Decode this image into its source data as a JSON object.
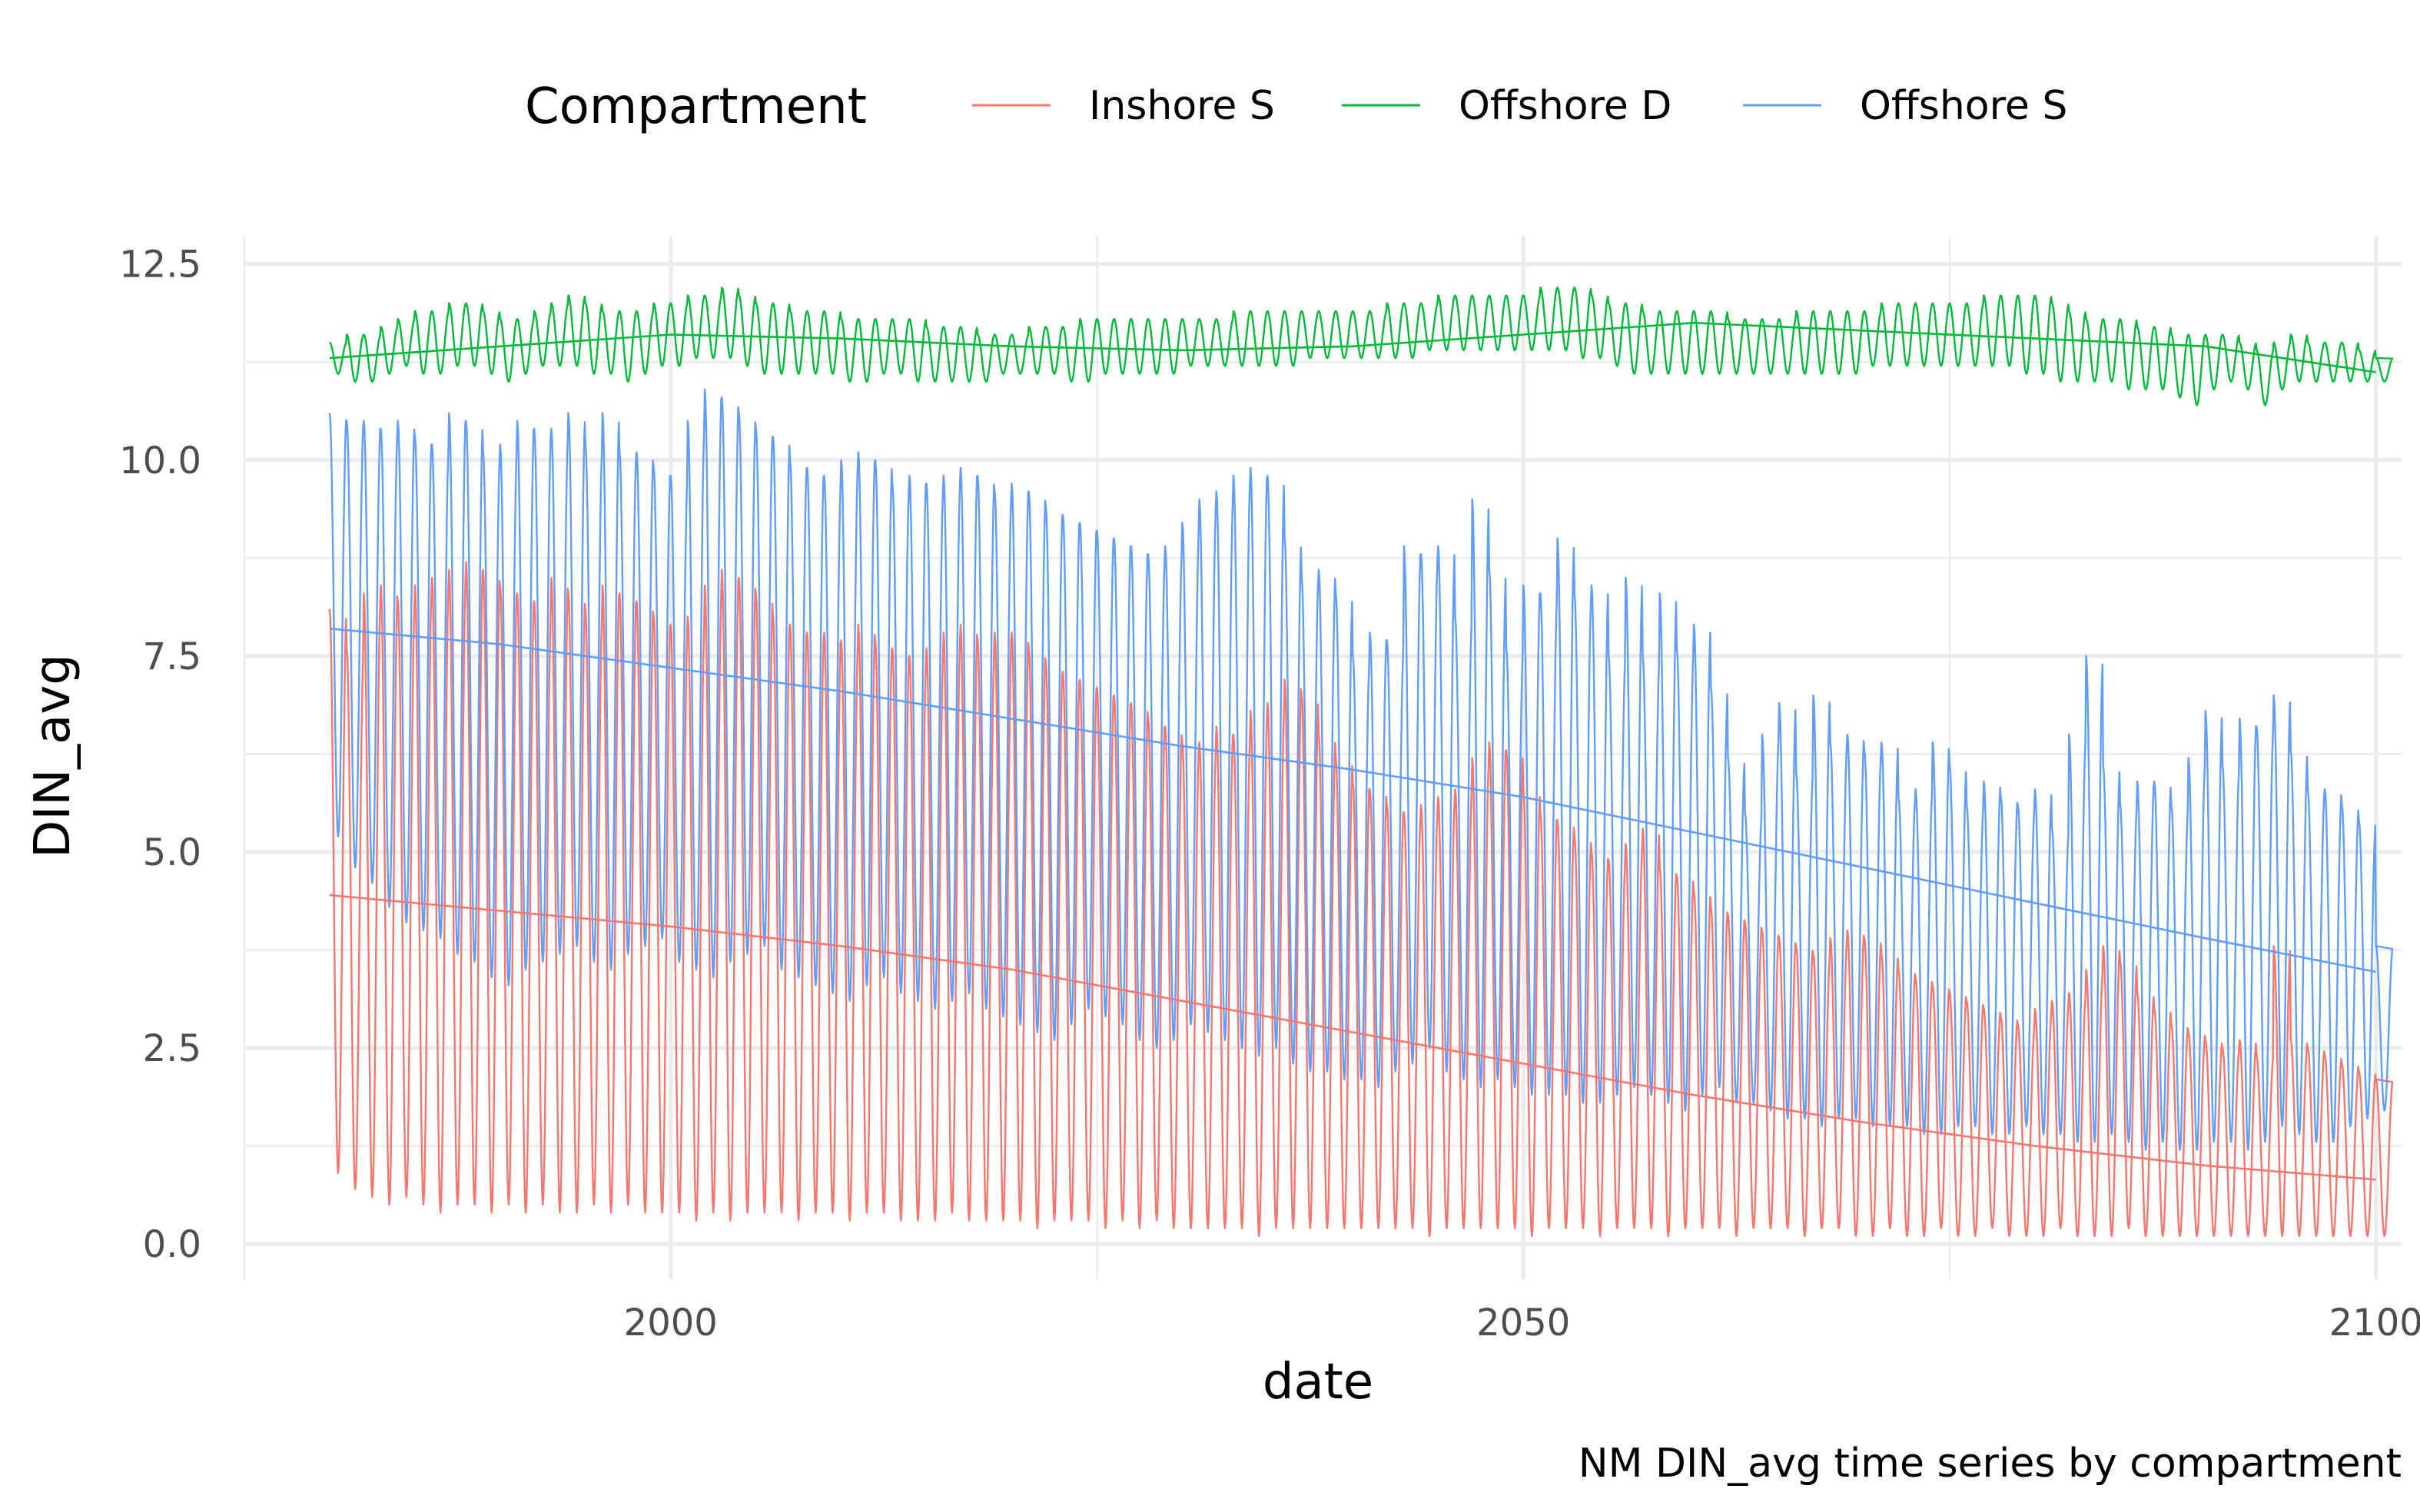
{
  "chart_data": {
    "type": "line",
    "title": "",
    "caption": "NM DIN_avg time series by compartment",
    "xlabel": "date",
    "ylabel": "DIN_avg",
    "x_range": [
      1975,
      2101.5
    ],
    "ylim": [
      -0.45,
      12.85
    ],
    "x_ticks": [
      2000,
      2050,
      2100
    ],
    "x_tick_labels": [
      "2000",
      "2050",
      "2100"
    ],
    "x_minor_ticks": [
      1975,
      2025,
      2075
    ],
    "y_ticks": [
      0,
      2.5,
      5,
      7.5,
      10,
      12.5
    ],
    "y_tick_labels": [
      "0.0",
      "2.5",
      "5.0",
      "7.5",
      "10.0",
      "12.5"
    ],
    "grid": true,
    "legend": {
      "title": "Compartment",
      "position": "top"
    },
    "series": [
      {
        "name": "Inshore S",
        "color": "#F8766D",
        "start_year": 1980,
        "end_year": 2100,
        "annual_max": [
          8.1,
          7.6,
          8.3,
          8.4,
          8.2,
          8.4,
          8.5,
          8.6,
          8.7,
          8.6,
          8.4,
          8.3,
          8.2,
          8.5,
          8.3,
          8.1,
          8.4,
          8.3,
          8.2,
          8.0,
          7.9,
          8.0,
          8.4,
          8.6,
          8.5,
          8.3,
          8.0,
          7.9,
          7.8,
          7.8,
          7.7,
          7.9,
          7.7,
          7.6,
          7.5,
          7.6,
          7.8,
          7.9,
          7.7,
          7.8,
          7.8,
          7.6,
          7.4,
          7.3,
          7.2,
          7.1,
          7.0,
          6.9,
          6.7,
          6.6,
          6.4,
          6.4,
          6.6,
          6.5,
          6.8,
          6.9,
          7.2,
          7.0,
          6.5,
          6.2,
          5.9,
          5.8,
          5.6,
          5.5,
          5.6,
          5.7,
          5.8,
          6.2,
          6.4,
          6.3,
          5.8,
          5.5,
          5.4,
          5.2,
          5.0,
          4.9,
          5.1,
          5.3,
          4.8,
          4.7,
          4.5,
          4.3,
          4.2,
          4.1,
          4.0,
          3.9,
          3.8,
          3.7,
          3.9,
          4.0,
          3.9,
          3.7,
          3.5,
          3.4,
          3.3,
          3.2,
          3.1,
          3.0,
          2.9,
          2.8,
          3.0,
          3.1,
          3.2,
          3.5,
          3.8,
          3.6,
          3.2,
          3.0,
          2.8,
          2.7,
          2.6,
          2.5,
          2.6,
          2.4,
          3.8,
          2.6,
          2.5,
          2.4,
          2.3,
          2.2,
          2.1
        ],
        "annual_min": [
          0.9,
          0.7,
          0.6,
          0.5,
          0.6,
          0.5,
          0.4,
          0.5,
          0.5,
          0.4,
          0.5,
          0.4,
          0.5,
          0.4,
          0.4,
          0.5,
          0.4,
          0.5,
          0.4,
          0.4,
          0.4,
          0.3,
          0.4,
          0.3,
          0.4,
          0.4,
          0.4,
          0.3,
          0.4,
          0.4,
          0.3,
          0.4,
          0.4,
          0.3,
          0.3,
          0.3,
          0.4,
          0.3,
          0.3,
          0.3,
          0.3,
          0.2,
          0.3,
          0.3,
          0.3,
          0.2,
          0.3,
          0.2,
          0.3,
          0.2,
          0.2,
          0.2,
          0.2,
          0.2,
          0.1,
          0.2,
          0.2,
          0.2,
          0.2,
          0.2,
          0.2,
          0.2,
          0.2,
          0.2,
          0.1,
          0.2,
          0.2,
          0.2,
          0.2,
          0.2,
          0.1,
          0.2,
          0.2,
          0.2,
          0.1,
          0.2,
          0.2,
          0.2,
          0.1,
          0.2,
          0.2,
          0.2,
          0.1,
          0.2,
          0.2,
          0.2,
          0.1,
          0.2,
          0.2,
          0.1,
          0.1,
          0.2,
          0.1,
          0.1,
          0.2,
          0.1,
          0.1,
          0.2,
          0.1,
          0.1,
          0.1,
          0.2,
          0.1,
          0.1,
          0.1,
          0.2,
          0.1,
          0.1,
          0.1,
          0.1,
          0.1,
          0.1,
          0.1,
          0.1,
          0.1,
          0.1,
          0.1,
          0.1,
          0.1,
          0.1,
          0.1
        ],
        "trend": {
          "x": [
            1980,
            1990,
            2000,
            2010,
            2020,
            2030,
            2040,
            2050,
            2060,
            2070,
            2080,
            2090,
            2100
          ],
          "y": [
            4.45,
            4.25,
            4.05,
            3.8,
            3.5,
            3.1,
            2.7,
            2.3,
            1.9,
            1.55,
            1.25,
            1.0,
            0.82
          ]
        }
      },
      {
        "name": "Offshore D",
        "color": "#00BA38",
        "start_year": 1980,
        "end_year": 2100,
        "annual_max": [
          11.5,
          11.6,
          11.6,
          11.7,
          11.8,
          11.9,
          11.9,
          12.0,
          12.0,
          11.9,
          11.8,
          11.8,
          11.9,
          12.0,
          12.1,
          12.0,
          11.9,
          11.9,
          11.9,
          12.0,
          12.0,
          12.1,
          12.1,
          12.2,
          12.1,
          12.0,
          12.0,
          11.9,
          11.9,
          11.9,
          11.8,
          11.8,
          11.8,
          11.8,
          11.8,
          11.7,
          11.7,
          11.7,
          11.6,
          11.6,
          11.6,
          11.7,
          11.7,
          11.7,
          11.8,
          11.8,
          11.8,
          11.8,
          11.8,
          11.8,
          11.8,
          11.8,
          11.8,
          11.9,
          11.9,
          11.9,
          11.9,
          11.9,
          11.9,
          11.9,
          11.9,
          11.9,
          12.0,
          12.0,
          12.0,
          12.1,
          12.1,
          12.1,
          12.1,
          12.1,
          12.1,
          12.2,
          12.2,
          12.2,
          12.1,
          12.0,
          12.0,
          11.9,
          11.9,
          11.9,
          11.9,
          11.9,
          11.8,
          11.8,
          11.8,
          11.8,
          11.9,
          11.9,
          11.9,
          11.9,
          11.9,
          12.0,
          12.0,
          12.0,
          12.0,
          12.0,
          12.0,
          12.1,
          12.1,
          12.1,
          12.1,
          12.0,
          11.9,
          11.8,
          11.8,
          11.8,
          11.7,
          11.7,
          11.6,
          11.6,
          11.6,
          11.6,
          11.5,
          11.4,
          11.5,
          11.6,
          11.5,
          11.5,
          11.5,
          11.4,
          11.3
        ],
        "annual_min": [
          11.1,
          11.0,
          11.0,
          11.1,
          11.2,
          11.1,
          11.1,
          11.2,
          11.2,
          11.1,
          11.0,
          11.1,
          11.2,
          11.2,
          11.2,
          11.1,
          11.1,
          11.0,
          11.1,
          11.2,
          11.2,
          11.3,
          11.3,
          11.3,
          11.2,
          11.1,
          11.1,
          11.1,
          11.1,
          11.1,
          11.0,
          11.0,
          11.1,
          11.1,
          11.0,
          11.0,
          11.0,
          11.0,
          11.0,
          11.1,
          11.1,
          11.1,
          11.1,
          11.0,
          11.0,
          11.1,
          11.1,
          11.1,
          11.1,
          11.1,
          11.2,
          11.2,
          11.2,
          11.2,
          11.2,
          11.2,
          11.2,
          11.3,
          11.3,
          11.3,
          11.3,
          11.3,
          11.3,
          11.3,
          11.4,
          11.4,
          11.4,
          11.4,
          11.4,
          11.4,
          11.4,
          11.4,
          11.4,
          11.3,
          11.3,
          11.2,
          11.1,
          11.1,
          11.1,
          11.1,
          11.1,
          11.1,
          11.1,
          11.1,
          11.1,
          11.1,
          11.1,
          11.1,
          11.1,
          11.1,
          11.2,
          11.2,
          11.2,
          11.2,
          11.2,
          11.2,
          11.2,
          11.2,
          11.2,
          11.1,
          11.1,
          11.0,
          11.0,
          11.0,
          11.0,
          10.9,
          10.9,
          10.9,
          10.8,
          10.7,
          10.9,
          11.0,
          10.9,
          10.7,
          10.9,
          11.0,
          11.0,
          11.0,
          11.0,
          11.0,
          11.0
        ],
        "trend": {
          "x": [
            1980,
            1990,
            2000,
            2010,
            2020,
            2030,
            2040,
            2050,
            2060,
            2070,
            2080,
            2090,
            2100
          ],
          "y": [
            11.3,
            11.45,
            11.6,
            11.55,
            11.45,
            11.4,
            11.45,
            11.6,
            11.75,
            11.65,
            11.55,
            11.45,
            11.12
          ]
        }
      },
      {
        "name": "Offshore S",
        "color": "#619CFF",
        "start_year": 1980,
        "end_year": 2100,
        "annual_max": [
          10.6,
          10.5,
          10.5,
          10.4,
          10.5,
          10.3,
          10.2,
          10.6,
          10.5,
          10.1,
          10.2,
          10.5,
          10.4,
          10.4,
          10.6,
          10.2,
          10.6,
          10.1,
          10.1,
          9.9,
          9.8,
          10.5,
          10.9,
          10.8,
          10.6,
          10.4,
          10.3,
          10.0,
          9.9,
          9.8,
          10.0,
          10.1,
          10.0,
          9.7,
          9.8,
          9.7,
          9.8,
          9.9,
          9.8,
          9.6,
          9.7,
          9.6,
          9.4,
          9.3,
          9.2,
          9.1,
          9.0,
          8.9,
          8.8,
          8.9,
          9.2,
          9.5,
          9.6,
          9.8,
          9.9,
          9.8,
          9.0,
          8.5,
          8.6,
          8.3,
          7.5,
          7.8,
          7.7,
          8.9,
          8.8,
          8.9,
          8.0,
          9.5,
          8.6,
          7.6,
          8.4,
          8.3,
          9.0,
          8.3,
          8.4,
          7.5,
          8.5,
          7.5,
          8.3,
          7.6,
          7.9,
          7.1,
          6.2,
          5.5,
          6.5,
          6.9,
          6.0,
          7.0,
          6.4,
          6.5,
          6.3,
          6.4,
          5.7,
          5.8,
          6.4,
          6.1,
          5.6,
          5.9,
          5.7,
          5.6,
          5.8,
          5.3,
          6.5,
          7.5,
          6.1,
          5.6,
          5.9,
          5.9,
          5.6,
          6.2,
          6.8,
          6.1,
          6.7,
          6.6,
          7.0,
          6.3,
          5.8,
          5.8,
          5.6,
          5.4,
          3.8
        ],
        "annual_min": [
          5.2,
          4.8,
          4.6,
          4.3,
          4.1,
          4.0,
          3.9,
          3.7,
          3.6,
          3.4,
          3.3,
          3.5,
          3.6,
          3.7,
          3.8,
          3.6,
          3.5,
          3.7,
          3.8,
          3.9,
          3.6,
          3.5,
          3.4,
          3.6,
          3.7,
          3.8,
          3.5,
          3.4,
          3.3,
          3.2,
          3.1,
          3.3,
          3.4,
          3.2,
          3.1,
          3.0,
          3.1,
          3.2,
          3.0,
          2.9,
          2.8,
          2.7,
          2.6,
          2.8,
          3.0,
          2.9,
          2.8,
          2.6,
          2.5,
          2.6,
          2.8,
          2.7,
          2.6,
          2.5,
          2.4,
          2.5,
          2.3,
          2.2,
          2.2,
          2.1,
          2.1,
          2.0,
          2.2,
          2.3,
          2.5,
          2.2,
          2.1,
          2.0,
          2.1,
          2.0,
          1.9,
          1.9,
          1.9,
          1.8,
          1.8,
          1.9,
          2.0,
          1.9,
          1.8,
          1.7,
          1.9,
          2.0,
          1.8,
          1.8,
          1.7,
          1.6,
          1.6,
          1.5,
          1.6,
          1.6,
          1.5,
          1.5,
          1.5,
          1.4,
          1.4,
          1.5,
          1.5,
          1.4,
          1.4,
          1.5,
          1.4,
          1.4,
          1.3,
          1.3,
          1.4,
          1.3,
          1.2,
          1.3,
          1.2,
          1.2,
          1.3,
          1.3,
          1.2,
          1.3,
          1.5,
          1.4,
          1.3,
          1.3,
          1.5,
          1.6,
          1.7
        ],
        "trend": {
          "x": [
            1980,
            1990,
            2000,
            2010,
            2020,
            2030,
            2040,
            2050,
            2060,
            2070,
            2080,
            2090,
            2100
          ],
          "y": [
            7.85,
            7.65,
            7.35,
            7.05,
            6.7,
            6.35,
            6.05,
            5.7,
            5.25,
            4.8,
            4.35,
            3.9,
            3.47
          ]
        }
      }
    ]
  }
}
